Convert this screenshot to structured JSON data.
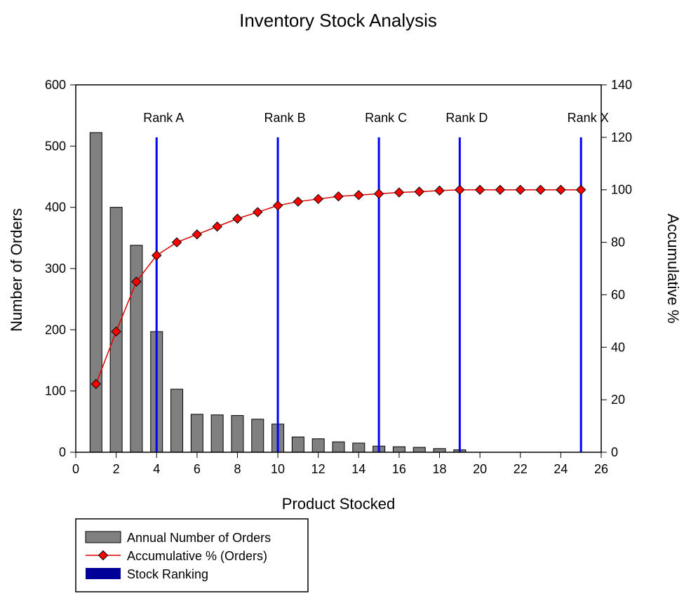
{
  "chart_data": {
    "type": "bar",
    "title": "Inventory Stock Analysis",
    "xlabel": "Product Stocked",
    "ylabel": "Number of Orders",
    "y2label": "Accumulative %",
    "xlim": [
      0,
      26
    ],
    "ylim": [
      0,
      600
    ],
    "y2lim": [
      0,
      140
    ],
    "x_ticks": [
      0,
      2,
      4,
      6,
      8,
      10,
      12,
      14,
      16,
      18,
      20,
      22,
      24,
      26
    ],
    "y_ticks": [
      0,
      100,
      200,
      300,
      400,
      500,
      600
    ],
    "y2_ticks": [
      0,
      20,
      40,
      60,
      80,
      100,
      120,
      140
    ],
    "x": [
      1,
      2,
      3,
      4,
      5,
      6,
      7,
      8,
      9,
      10,
      11,
      12,
      13,
      14,
      15,
      16,
      17,
      18,
      19,
      20,
      21,
      22,
      23,
      24,
      25
    ],
    "series": [
      {
        "name": "Annual Number of Orders",
        "type": "bar",
        "axis": "left",
        "color": "#808080",
        "values": [
          522,
          400,
          338,
          197,
          103,
          62,
          61,
          60,
          54,
          46,
          25,
          22,
          17,
          15,
          10,
          9,
          8,
          6,
          4,
          0,
          0,
          0,
          0,
          0,
          0
        ]
      },
      {
        "name": "Accumulative % (Orders)",
        "type": "line",
        "axis": "right",
        "color": "#dd0000",
        "values": [
          26,
          46,
          65,
          75,
          80,
          83,
          86,
          89,
          91.5,
          94,
          95.5,
          96.5,
          97.5,
          98,
          98.5,
          99,
          99.3,
          99.7,
          100,
          100,
          100,
          100,
          100,
          100,
          100
        ]
      },
      {
        "name": "Stock Ranking",
        "type": "vline",
        "color": "#0000ff",
        "lines": [
          {
            "x": 4,
            "label": "Rank A"
          },
          {
            "x": 10,
            "label": "Rank B"
          },
          {
            "x": 15,
            "label": "Rank C"
          },
          {
            "x": 19,
            "label": "Rank D"
          },
          {
            "x": 25,
            "label": "Rank X"
          }
        ],
        "top_value": 120
      }
    ],
    "legend": {
      "placement": "bottom-left",
      "entries": [
        {
          "label": "Annual Number of Orders",
          "swatch_color": "#808080",
          "kind": "bar"
        },
        {
          "label": "Accumulative % (Orders)",
          "swatch_color": "#dd0000",
          "kind": "line"
        },
        {
          "label": "Stock Ranking",
          "swatch_color": "#000099",
          "kind": "band"
        }
      ]
    }
  }
}
